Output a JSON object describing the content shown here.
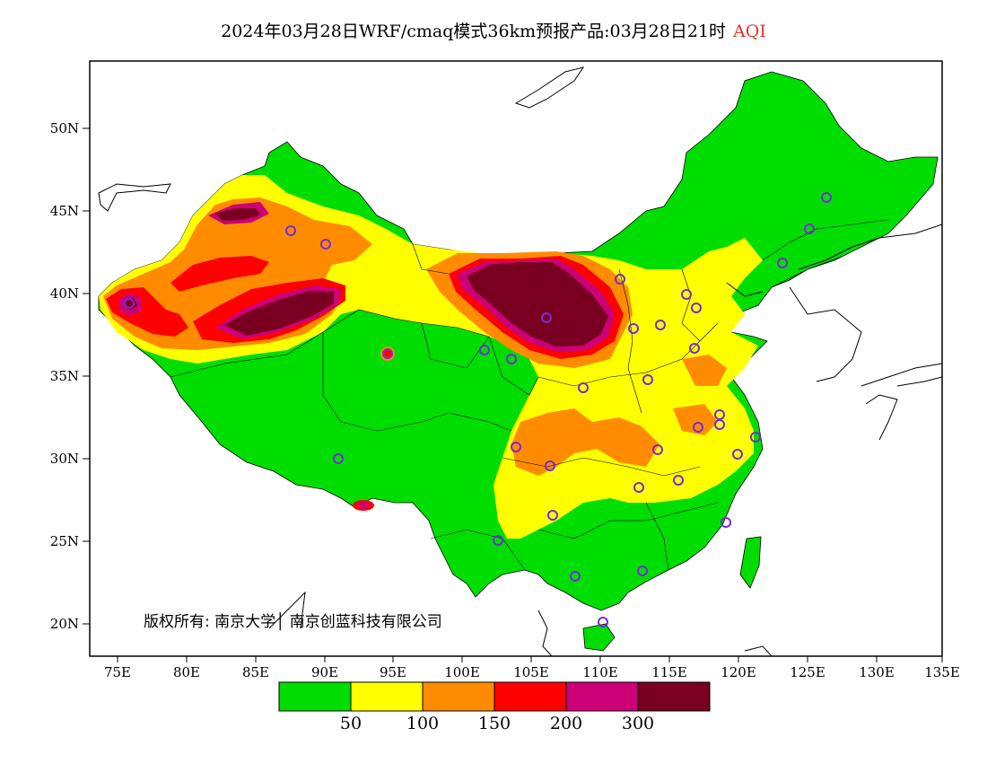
{
  "title": {
    "main": "2024年03月28日WRF/cmaq模式36km预报产品:03月28日21时",
    "variable": "AQI"
  },
  "axes": {
    "lat_ticks": [
      "50N",
      "45N",
      "40N",
      "35N",
      "30N",
      "25N",
      "20N"
    ],
    "lon_ticks": [
      "75E",
      "80E",
      "85E",
      "90E",
      "95E",
      "100E",
      "105E",
      "110E",
      "115E",
      "120E",
      "125E",
      "130E",
      "135E"
    ]
  },
  "copyright": "版权所有: 南京大学│ 南京创蓝科技有限公司",
  "legend": {
    "colors": [
      "#00dd00",
      "#ffff00",
      "#ff8c00",
      "#ff0000",
      "#cc0077",
      "#7a0021"
    ],
    "labels": [
      "50",
      "100",
      "150",
      "200",
      "300"
    ]
  },
  "stations_color": "#7a2ad6"
}
